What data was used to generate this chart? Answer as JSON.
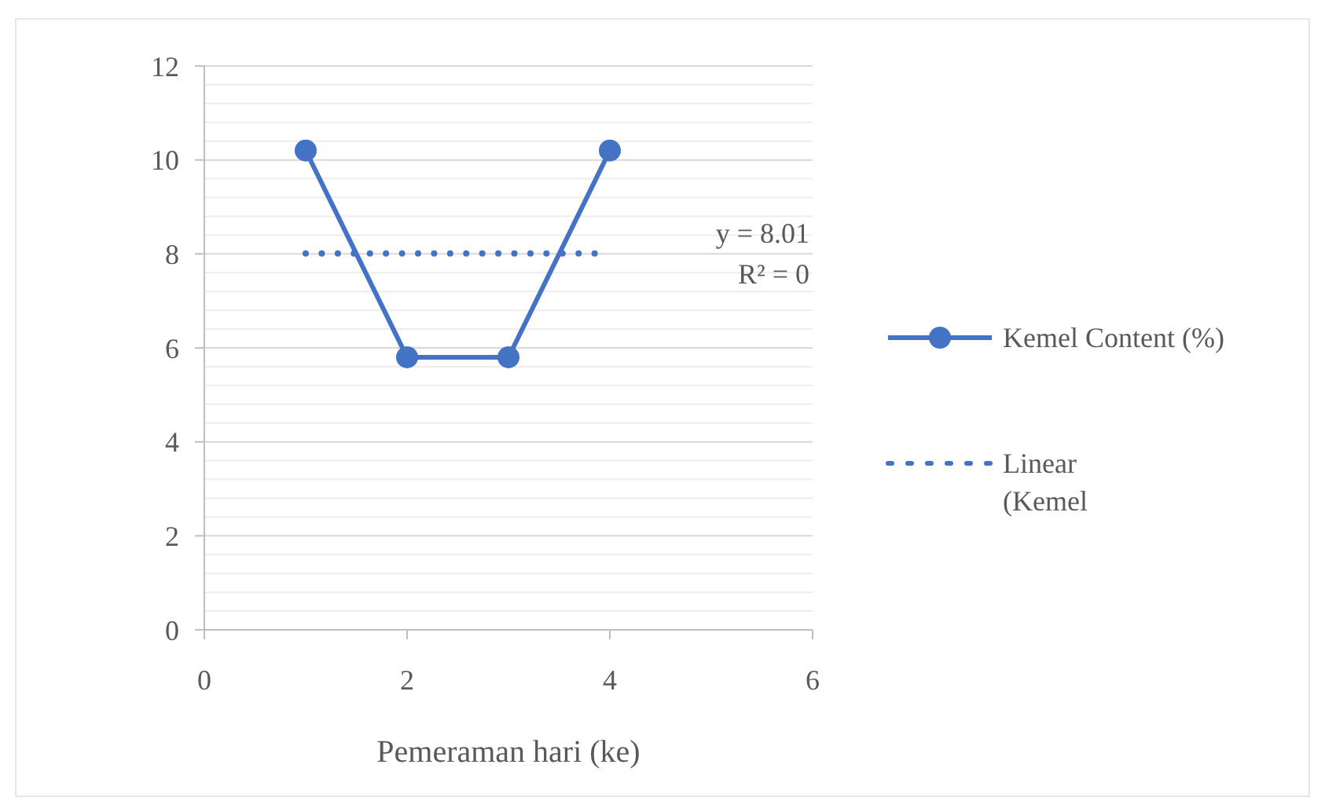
{
  "chart_data": {
    "type": "line",
    "xlabel": "Pemeraman hari (ke)",
    "xlim": [
      0,
      6
    ],
    "xticks": [
      0,
      2,
      4,
      6
    ],
    "ylim": [
      0,
      12
    ],
    "yticks": [
      0,
      {
        "value": 0.4,
        "label": null
      },
      {
        "value": 0.8,
        "label": null
      },
      {
        "value": 1.2,
        "label": null
      },
      {
        "value": 1.6,
        "label": null
      },
      2,
      {
        "value": 2.4,
        "label": null
      },
      {
        "value": 2.8,
        "label": null
      },
      {
        "value": 3.2,
        "label": null
      },
      {
        "value": 3.6,
        "label": null
      },
      4,
      {
        "value": 4.4,
        "label": null
      },
      {
        "value": 4.8,
        "label": null
      },
      {
        "value": 5.2,
        "label": null
      },
      {
        "value": 5.6,
        "label": null
      },
      6,
      {
        "value": 6.4,
        "label": null
      },
      {
        "value": 6.8,
        "label": null
      },
      {
        "value": 7.2,
        "label": null
      },
      {
        "value": 7.6,
        "label": null
      },
      8,
      {
        "value": 8.4,
        "label": null
      },
      {
        "value": 8.8,
        "label": null
      },
      {
        "value": 9.2,
        "label": null
      },
      {
        "value": 9.6,
        "label": null
      },
      10,
      {
        "value": 10.4,
        "label": null
      },
      {
        "value": 10.8,
        "label": null
      },
      {
        "value": 11.2,
        "label": null
      },
      {
        "value": 11.6,
        "label": null
      },
      12
    ],
    "grid": "y",
    "legend": "right",
    "series": [
      {
        "name": "Kemel Content (%)",
        "color": "#4472c4",
        "x": [
          1,
          2,
          3,
          4
        ],
        "values": [
          10.2,
          5.8,
          5.8,
          10.2
        ],
        "marker": "circle",
        "line_style": "solid"
      },
      {
        "name": "Linear (Kemel",
        "color": "#4472c4",
        "x": [
          1,
          3.85
        ],
        "values": [
          8.01,
          8.01
        ],
        "marker": "none",
        "line_style": "dotted"
      }
    ],
    "annotations": [
      "y = 8.01",
      "R² = 0"
    ]
  }
}
